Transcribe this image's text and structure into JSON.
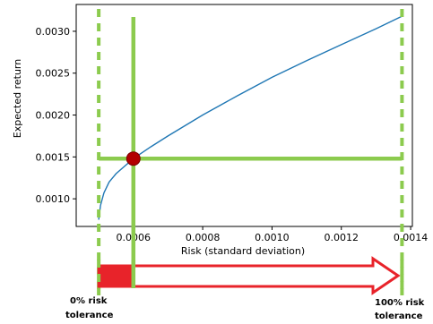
{
  "chart_data": {
    "type": "line",
    "title": "",
    "xlabel": "Risk (standard deviation)",
    "ylabel": "Expected return",
    "xlim": [
      0.000435,
      0.001405
    ],
    "ylim": [
      0.00067,
      0.00332
    ],
    "xticks": [
      {
        "value": 0.0006,
        "label": "0.0006"
      },
      {
        "value": 0.0008,
        "label": "0.0008"
      },
      {
        "value": 0.001,
        "label": "0.0010"
      },
      {
        "value": 0.0012,
        "label": "0.0012"
      },
      {
        "value": 0.0014,
        "label": "0.0014"
      }
    ],
    "yticks": [
      {
        "value": 0.001,
        "label": "0.0010"
      },
      {
        "value": 0.0015,
        "label": "0.0015"
      },
      {
        "value": 0.002,
        "label": "0.0020"
      },
      {
        "value": 0.0025,
        "label": "0.0025"
      },
      {
        "value": 0.003,
        "label": "0.0030"
      }
    ],
    "grid": false,
    "series": [
      {
        "color": "#1f77b4",
        "x": [
          0.0005,
          0.000505,
          0.000515,
          0.00053,
          0.00055,
          0.000575,
          0.0006,
          0.00065,
          0.0007,
          0.0008,
          0.0009,
          0.001,
          0.0011,
          0.0012,
          0.0013,
          0.001375
        ],
        "y": [
          0.00075,
          0.00092,
          0.00107,
          0.0012,
          0.0013,
          0.00139,
          0.00148,
          0.00162,
          0.00175,
          0.002,
          0.00223,
          0.00245,
          0.00265,
          0.00284,
          0.00303,
          0.00318
        ]
      }
    ],
    "marker": {
      "x": 0.0006,
      "y": 0.00148,
      "color": "#b30000"
    },
    "guides": {
      "color": "#8ccb4e",
      "solid_vertical_x": 0.0006,
      "solid_horizontal_y": 0.00148,
      "dashed_vertical_x": [
        0.0005,
        0.001375
      ]
    }
  },
  "tolerance": {
    "min_label": [
      "0% risk",
      "tolerance"
    ],
    "max_label": [
      "100% risk",
      "tolerance"
    ],
    "current_fraction": 0.11,
    "arrow_color": "#e8232a"
  }
}
